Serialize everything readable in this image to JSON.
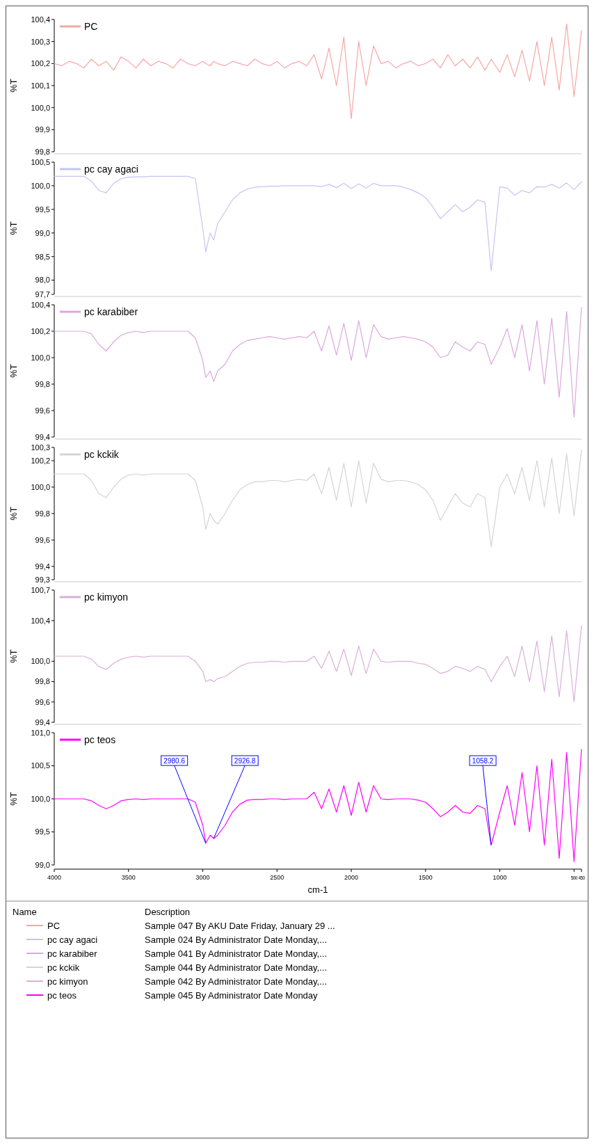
{
  "chart_data": [
    {
      "type": "line",
      "ylabel": "%T",
      "xlim": [
        4000,
        450
      ],
      "tick_labels": "y",
      "legend": "top left",
      "marker": "none",
      "line_style": "solid",
      "ylim": [
        99.8,
        100.4
      ],
      "yticks": [
        {
          "value": 100.4,
          "label": "100,4"
        },
        {
          "value": 100.3,
          "label": "100,3"
        },
        {
          "value": 100.2,
          "label": "100,2"
        },
        {
          "value": 100.1,
          "label": "100,1"
        },
        {
          "value": 100.0,
          "label": "100,0"
        },
        {
          "value": 99.9,
          "label": "99,9"
        },
        {
          "value": 99.8,
          "label": "99,8"
        }
      ],
      "x": [
        450,
        500,
        550,
        600,
        650,
        700,
        750,
        800,
        850,
        900,
        950,
        1000,
        1058,
        1100,
        1150,
        1200,
        1250,
        1300,
        1350,
        1400,
        1450,
        1500,
        1550,
        1600,
        1650,
        1700,
        1750,
        1800,
        1850,
        1900,
        1950,
        2000,
        2050,
        2100,
        2150,
        2200,
        2250,
        2300,
        2350,
        2400,
        2450,
        2500,
        2550,
        2600,
        2650,
        2700,
        2750,
        2800,
        2850,
        2900,
        2926,
        2950,
        2980,
        3000,
        3050,
        3100,
        3150,
        3200,
        3250,
        3300,
        3350,
        3400,
        3450,
        3500,
        3550,
        3600,
        3650,
        3700,
        3750,
        3800,
        3850,
        3900,
        3950,
        4000
      ],
      "series": [
        {
          "name": "PC",
          "color": "#f6a6a6",
          "values": [
            100.35,
            100.05,
            100.38,
            100.08,
            100.32,
            100.1,
            100.3,
            100.12,
            100.26,
            100.14,
            100.24,
            100.16,
            100.22,
            100.17,
            100.23,
            100.18,
            100.22,
            100.19,
            100.24,
            100.18,
            100.22,
            100.2,
            100.19,
            100.21,
            100.2,
            100.18,
            100.21,
            100.2,
            100.28,
            100.1,
            100.3,
            99.95,
            100.32,
            100.1,
            100.27,
            100.13,
            100.24,
            100.19,
            100.21,
            100.2,
            100.18,
            100.21,
            100.19,
            100.2,
            100.22,
            100.19,
            100.2,
            100.21,
            100.19,
            100.2,
            100.21,
            100.19,
            100.2,
            100.21,
            100.19,
            100.2,
            100.22,
            100.18,
            100.2,
            100.21,
            100.19,
            100.22,
            100.18,
            100.21,
            100.23,
            100.17,
            100.21,
            100.19,
            100.22,
            100.18,
            100.2,
            100.21,
            100.19,
            100.2
          ]
        }
      ]
    },
    {
      "type": "line",
      "ylabel": "%T",
      "xlim": [
        4000,
        450
      ],
      "tick_labels": "y",
      "legend": "top left",
      "marker": "none",
      "line_style": "solid",
      "ylim": [
        97.7,
        100.5
      ],
      "yticks": [
        {
          "value": 100.5,
          "label": "100,5"
        },
        {
          "value": 100.0,
          "label": "100,0"
        },
        {
          "value": 99.5,
          "label": "99,5"
        },
        {
          "value": 99.0,
          "label": "99,0"
        },
        {
          "value": 98.5,
          "label": "98,5"
        },
        {
          "value": 98.0,
          "label": "98,0"
        },
        {
          "value": 97.7,
          "label": "97,7"
        }
      ],
      "x": [
        450,
        500,
        550,
        600,
        650,
        700,
        750,
        800,
        850,
        900,
        950,
        1000,
        1058,
        1100,
        1150,
        1200,
        1250,
        1300,
        1350,
        1400,
        1450,
        1500,
        1550,
        1600,
        1650,
        1700,
        1750,
        1800,
        1850,
        1900,
        1950,
        2000,
        2050,
        2100,
        2150,
        2200,
        2250,
        2300,
        2350,
        2400,
        2450,
        2500,
        2550,
        2600,
        2650,
        2700,
        2750,
        2800,
        2850,
        2900,
        2926,
        2950,
        2980,
        3000,
        3050,
        3100,
        3150,
        3200,
        3250,
        3300,
        3350,
        3400,
        3450,
        3500,
        3550,
        3600,
        3650,
        3700,
        3750,
        3800,
        3850,
        3900,
        3950,
        4000
      ],
      "series": [
        {
          "name": "pc cay agaci",
          "color": "#c4c4f4",
          "values": [
            100.08,
            99.92,
            100.06,
            99.95,
            100.03,
            99.97,
            99.98,
            99.85,
            99.9,
            99.8,
            99.95,
            99.98,
            98.2,
            99.65,
            99.7,
            99.55,
            99.45,
            99.6,
            99.45,
            99.3,
            99.55,
            99.75,
            99.85,
            99.92,
            99.97,
            100.0,
            100.0,
            100.0,
            100.05,
            99.95,
            100.04,
            99.94,
            100.05,
            99.96,
            100.03,
            99.98,
            100.0,
            100.0,
            100.0,
            100.0,
            100.0,
            99.99,
            99.99,
            99.98,
            99.97,
            99.93,
            99.85,
            99.7,
            99.45,
            99.2,
            98.85,
            99.0,
            98.6,
            99.1,
            100.15,
            100.2,
            100.2,
            100.2,
            100.2,
            100.2,
            100.2,
            100.19,
            100.19,
            100.18,
            100.15,
            100.05,
            99.85,
            99.9,
            100.1,
            100.2,
            100.2,
            100.2,
            100.2,
            100.2
          ]
        }
      ]
    },
    {
      "type": "line",
      "ylabel": "%T",
      "xlim": [
        4000,
        450
      ],
      "tick_labels": "y",
      "legend": "top left",
      "marker": "none",
      "line_style": "solid",
      "ylim": [
        99.4,
        100.4
      ],
      "yticks": [
        {
          "value": 100.4,
          "label": "100,4"
        },
        {
          "value": 100.2,
          "label": "100,2"
        },
        {
          "value": 100.0,
          "label": "100,0"
        },
        {
          "value": 99.8,
          "label": "99,8"
        },
        {
          "value": 99.6,
          "label": "99,6"
        },
        {
          "value": 99.4,
          "label": "99,4"
        }
      ],
      "x": [
        450,
        500,
        550,
        600,
        650,
        700,
        750,
        800,
        850,
        900,
        950,
        1000,
        1058,
        1100,
        1150,
        1200,
        1250,
        1300,
        1350,
        1400,
        1450,
        1500,
        1550,
        1600,
        1650,
        1700,
        1750,
        1800,
        1850,
        1900,
        1950,
        2000,
        2050,
        2100,
        2150,
        2200,
        2250,
        2300,
        2350,
        2400,
        2450,
        2500,
        2550,
        2600,
        2650,
        2700,
        2750,
        2800,
        2850,
        2900,
        2926,
        2950,
        2980,
        3000,
        3050,
        3100,
        3150,
        3200,
        3250,
        3300,
        3350,
        3400,
        3450,
        3500,
        3550,
        3600,
        3650,
        3700,
        3750,
        3800,
        3850,
        3900,
        3950,
        4000
      ],
      "series": [
        {
          "name": "pc karabiber",
          "color": "#dba8db",
          "values": [
            100.38,
            99.55,
            100.35,
            99.7,
            100.3,
            99.8,
            100.28,
            99.9,
            100.25,
            100.0,
            100.22,
            100.08,
            99.95,
            100.1,
            100.12,
            100.05,
            100.08,
            100.12,
            100.02,
            100.0,
            100.08,
            100.12,
            100.14,
            100.15,
            100.16,
            100.15,
            100.14,
            100.16,
            100.25,
            100.0,
            100.28,
            99.98,
            100.26,
            100.02,
            100.24,
            100.05,
            100.2,
            100.15,
            100.16,
            100.15,
            100.14,
            100.15,
            100.16,
            100.15,
            100.14,
            100.13,
            100.1,
            100.05,
            99.95,
            99.9,
            99.82,
            99.9,
            99.85,
            99.98,
            100.15,
            100.2,
            100.2,
            100.2,
            100.2,
            100.2,
            100.2,
            100.19,
            100.2,
            100.19,
            100.17,
            100.12,
            100.05,
            100.1,
            100.18,
            100.2,
            100.2,
            100.2,
            100.2,
            100.2
          ]
        }
      ]
    },
    {
      "type": "line",
      "ylabel": "%T",
      "xlim": [
        4000,
        450
      ],
      "tick_labels": "y",
      "legend": "top left",
      "marker": "none",
      "line_style": "solid",
      "ylim": [
        99.3,
        100.3
      ],
      "yticks": [
        {
          "value": 100.3,
          "label": "100,3"
        },
        {
          "value": 100.2,
          "label": "100,2"
        },
        {
          "value": 100.0,
          "label": "100,0"
        },
        {
          "value": 99.8,
          "label": "99,8"
        },
        {
          "value": 99.6,
          "label": "99,6"
        },
        {
          "value": 99.4,
          "label": "99,4"
        },
        {
          "value": 99.3,
          "label": "99,3"
        }
      ],
      "x": [
        450,
        500,
        550,
        600,
        650,
        700,
        750,
        800,
        850,
        900,
        950,
        1000,
        1058,
        1100,
        1150,
        1200,
        1250,
        1300,
        1350,
        1400,
        1450,
        1500,
        1550,
        1600,
        1650,
        1700,
        1750,
        1800,
        1850,
        1900,
        1950,
        2000,
        2050,
        2100,
        2150,
        2200,
        2250,
        2300,
        2350,
        2400,
        2450,
        2500,
        2550,
        2600,
        2650,
        2700,
        2750,
        2800,
        2850,
        2900,
        2926,
        2950,
        2980,
        3000,
        3050,
        3100,
        3150,
        3200,
        3250,
        3300,
        3350,
        3400,
        3450,
        3500,
        3550,
        3600,
        3650,
        3700,
        3750,
        3800,
        3850,
        3900,
        3950,
        4000
      ],
      "series": [
        {
          "name": "pc kckik",
          "color": "#d4d4d4",
          "values": [
            100.28,
            99.78,
            100.25,
            99.8,
            100.22,
            99.85,
            100.2,
            99.9,
            100.15,
            99.95,
            100.1,
            100.0,
            99.55,
            99.92,
            99.95,
            99.85,
            99.88,
            99.95,
            99.85,
            99.75,
            99.9,
            99.98,
            100.02,
            100.04,
            100.05,
            100.05,
            100.04,
            100.06,
            100.18,
            99.88,
            100.2,
            99.85,
            100.18,
            99.9,
            100.15,
            99.95,
            100.1,
            100.05,
            100.06,
            100.05,
            100.04,
            100.05,
            100.05,
            100.04,
            100.04,
            100.02,
            99.98,
            99.9,
            99.8,
            99.72,
            99.75,
            99.8,
            99.68,
            99.85,
            100.05,
            100.1,
            100.1,
            100.1,
            100.1,
            100.1,
            100.1,
            100.09,
            100.1,
            100.09,
            100.06,
            100.0,
            99.92,
            99.95,
            100.05,
            100.1,
            100.1,
            100.1,
            100.1,
            100.1
          ]
        }
      ]
    },
    {
      "type": "line",
      "ylabel": "%T",
      "xlim": [
        4000,
        450
      ],
      "tick_labels": "y",
      "legend": "top left",
      "marker": "none",
      "line_style": "solid",
      "ylim": [
        99.4,
        100.7
      ],
      "yticks": [
        {
          "value": 100.7,
          "label": "100,7"
        },
        {
          "value": 100.4,
          "label": "100,4"
        },
        {
          "value": 100.0,
          "label": "100,0"
        },
        {
          "value": 99.8,
          "label": "99,8"
        },
        {
          "value": 99.6,
          "label": "99,6"
        },
        {
          "value": 99.4,
          "label": "99,4"
        }
      ],
      "x": [
        450,
        500,
        550,
        600,
        650,
        700,
        750,
        800,
        850,
        900,
        950,
        1000,
        1058,
        1100,
        1150,
        1200,
        1250,
        1300,
        1350,
        1400,
        1450,
        1500,
        1550,
        1600,
        1650,
        1700,
        1750,
        1800,
        1850,
        1900,
        1950,
        2000,
        2050,
        2100,
        2150,
        2200,
        2250,
        2300,
        2350,
        2400,
        2450,
        2500,
        2550,
        2600,
        2650,
        2700,
        2750,
        2800,
        2850,
        2900,
        2926,
        2950,
        2980,
        3000,
        3050,
        3100,
        3150,
        3200,
        3250,
        3300,
        3350,
        3400,
        3450,
        3500,
        3550,
        3600,
        3650,
        3700,
        3750,
        3800,
        3850,
        3900,
        3950,
        4000
      ],
      "series": [
        {
          "name": "pc kimyon",
          "color": "#d8b0d8",
          "values": [
            100.35,
            99.6,
            100.3,
            99.65,
            100.25,
            99.7,
            100.2,
            99.8,
            100.15,
            99.85,
            100.05,
            99.95,
            99.8,
            99.92,
            99.95,
            99.9,
            99.93,
            99.95,
            99.9,
            99.88,
            99.93,
            99.97,
            99.98,
            100.0,
            100.0,
            100.0,
            99.99,
            100.0,
            100.12,
            99.88,
            100.15,
            99.86,
            100.12,
            99.9,
            100.1,
            99.93,
            100.05,
            100.0,
            100.0,
            100.0,
            99.99,
            100.0,
            100.0,
            99.99,
            99.99,
            99.98,
            99.95,
            99.9,
            99.85,
            99.83,
            99.8,
            99.82,
            99.8,
            99.9,
            100.0,
            100.05,
            100.05,
            100.05,
            100.05,
            100.05,
            100.05,
            100.04,
            100.05,
            100.04,
            100.02,
            99.98,
            99.92,
            99.95,
            100.02,
            100.05,
            100.05,
            100.05,
            100.05,
            100.05
          ]
        }
      ]
    },
    {
      "type": "line",
      "ylabel": "%T",
      "xlabel": "cm-1",
      "xlim": [
        4000,
        450
      ],
      "xticks": [
        4000,
        3500,
        3000,
        2500,
        2000,
        1500,
        1000,
        500,
        450
      ],
      "legend": "top left",
      "marker": "none",
      "line_style": "solid",
      "ylim": [
        99.0,
        101.0
      ],
      "yticks": [
        {
          "value": 101.0,
          "label": "101,0"
        },
        {
          "value": 100.5,
          "label": "100,5"
        },
        {
          "value": 100.0,
          "label": "100,0"
        },
        {
          "value": 99.5,
          "label": "99,5"
        },
        {
          "value": 99.0,
          "label": "99,0"
        }
      ],
      "x": [
        450,
        500,
        550,
        600,
        650,
        700,
        750,
        800,
        850,
        900,
        950,
        1000,
        1058,
        1100,
        1150,
        1200,
        1250,
        1300,
        1350,
        1400,
        1450,
        1500,
        1550,
        1600,
        1650,
        1700,
        1750,
        1800,
        1850,
        1900,
        1950,
        2000,
        2050,
        2100,
        2150,
        2200,
        2250,
        2300,
        2350,
        2400,
        2450,
        2500,
        2550,
        2600,
        2650,
        2700,
        2750,
        2800,
        2850,
        2900,
        2926,
        2950,
        2980,
        3000,
        3050,
        3100,
        3150,
        3200,
        3250,
        3300,
        3350,
        3400,
        3450,
        3500,
        3550,
        3600,
        3650,
        3700,
        3750,
        3800,
        3850,
        3900,
        3950,
        4000
      ],
      "series": [
        {
          "name": "pc teos",
          "color": "#ff00ff",
          "values": [
            100.75,
            99.05,
            100.7,
            99.1,
            100.6,
            99.3,
            100.5,
            99.5,
            100.4,
            99.6,
            100.2,
            99.8,
            99.3,
            99.85,
            99.9,
            99.78,
            99.8,
            99.9,
            99.8,
            99.73,
            99.85,
            99.95,
            99.98,
            100.0,
            100.0,
            100.0,
            99.99,
            100.0,
            100.2,
            99.8,
            100.25,
            99.75,
            100.2,
            99.8,
            100.15,
            99.85,
            100.1,
            100.0,
            100.0,
            100.0,
            99.99,
            100.0,
            100.0,
            99.99,
            99.99,
            99.98,
            99.92,
            99.8,
            99.6,
            99.45,
            99.4,
            99.45,
            99.33,
            99.6,
            99.95,
            100.0,
            100.0,
            100.0,
            100.0,
            100.0,
            100.0,
            99.99,
            100.0,
            99.99,
            99.97,
            99.9,
            99.85,
            99.9,
            99.97,
            100.0,
            100.0,
            100.0,
            100.0,
            100.0
          ]
        }
      ],
      "annotations": [
        {
          "text": "2980.6",
          "x": 2980.6,
          "y": 99.33
        },
        {
          "text": "2926.8",
          "x": 2926.8,
          "y": 99.4
        },
        {
          "text": "1058.2",
          "x": 1058.2,
          "y": 99.3
        }
      ]
    },
    {
      "type": "other",
      "annotations": [
        "Name",
        "Description",
        "Sample 047 By AKU Date Friday, January 29 ...",
        "Sample 024 By Administrator Date Monday,...",
        "Sample 041 By Administrator Date Monday,...",
        "Sample 044 By Administrator Date Monday,...",
        "Sample 042 By Administrator Date Monday,...",
        "Sample 045 By Administrator Date Monday"
      ]
    }
  ]
}
